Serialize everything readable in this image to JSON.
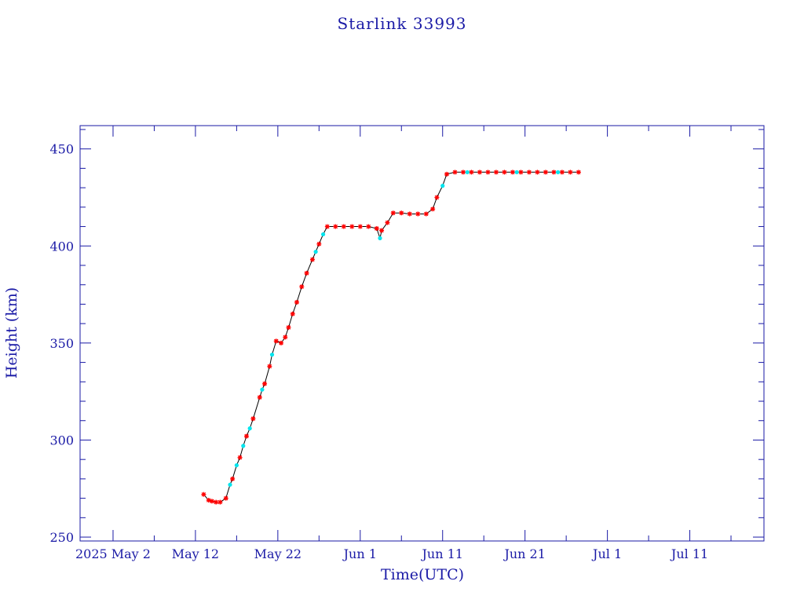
{
  "chart_data": {
    "type": "scatter",
    "title": "Starlink 33993",
    "xlabel": "Time(UTC)",
    "ylabel": "Height (km)",
    "x_range": [
      "2025-04-28",
      "2025-07-20"
    ],
    "ylim": [
      248,
      462
    ],
    "x_ticks": [
      {
        "label": "2025 May  2",
        "date": "2025-05-02"
      },
      {
        "label": "May 12",
        "date": "2025-05-12"
      },
      {
        "label": "May 22",
        "date": "2025-05-22"
      },
      {
        "label": "Jun  1",
        "date": "2025-06-01"
      },
      {
        "label": "Jun 11",
        "date": "2025-06-11"
      },
      {
        "label": "Jun 21",
        "date": "2025-06-21"
      },
      {
        "label": "Jul  1",
        "date": "2025-07-01"
      },
      {
        "label": "Jul 11",
        "date": "2025-07-11"
      }
    ],
    "y_ticks": [
      250,
      300,
      350,
      400,
      450
    ],
    "grid": false,
    "colors": {
      "axis": "#1a1aa6",
      "line": "#000000",
      "marker_primary": "#ff0000",
      "marker_secondary": "#00e5ee"
    },
    "series": [
      {
        "marker": "star",
        "color": "#ff0000",
        "points": [
          [
            "2025-05-13",
            272
          ],
          [
            "2025-05-13.6",
            269
          ],
          [
            "2025-05-14",
            268.5
          ],
          [
            "2025-05-14.5",
            268
          ],
          [
            "2025-05-15",
            268
          ],
          [
            "2025-05-15.7",
            270
          ],
          [
            "2025-05-16.5",
            280
          ],
          [
            "2025-05-17.4",
            291
          ],
          [
            "2025-05-18.2",
            302
          ],
          [
            "2025-05-19",
            311
          ],
          [
            "2025-05-19.8",
            322
          ],
          [
            "2025-05-20.4",
            329
          ],
          [
            "2025-05-21",
            338
          ],
          [
            "2025-05-21.8",
            351
          ],
          [
            "2025-05-22.4",
            350
          ],
          [
            "2025-05-22.9",
            353
          ],
          [
            "2025-05-23.3",
            358
          ],
          [
            "2025-05-23.8",
            365
          ],
          [
            "2025-05-24.3",
            371
          ],
          [
            "2025-05-24.9",
            379
          ],
          [
            "2025-05-25.5",
            386
          ],
          [
            "2025-05-26.2",
            393
          ],
          [
            "2025-05-27",
            401
          ],
          [
            "2025-05-28",
            410
          ],
          [
            "2025-05-29",
            410
          ],
          [
            "2025-05-30",
            410
          ],
          [
            "2025-05-31",
            410
          ],
          [
            "2025-06-01",
            410
          ],
          [
            "2025-06-02",
            410
          ],
          [
            "2025-06-03",
            409
          ],
          [
            "2025-06-03.6",
            408
          ],
          [
            "2025-06-04.3",
            412
          ],
          [
            "2025-06-05",
            417
          ],
          [
            "2025-06-06",
            417
          ],
          [
            "2025-06-07",
            416.5
          ],
          [
            "2025-06-08",
            416.5
          ],
          [
            "2025-06-09",
            416.5
          ],
          [
            "2025-06-09.8",
            419
          ],
          [
            "2025-06-10.3",
            425
          ],
          [
            "2025-06-11.5",
            437
          ],
          [
            "2025-06-12.5",
            438
          ],
          [
            "2025-06-13.5",
            438
          ],
          [
            "2025-06-14.5",
            438
          ],
          [
            "2025-06-15.5",
            438
          ],
          [
            "2025-06-16.5",
            438
          ],
          [
            "2025-06-17.5",
            438
          ],
          [
            "2025-06-18.5",
            438
          ],
          [
            "2025-06-19.5",
            438
          ],
          [
            "2025-06-20.5",
            438
          ],
          [
            "2025-06-21.5",
            438
          ],
          [
            "2025-06-22.5",
            438
          ],
          [
            "2025-06-23.5",
            438
          ],
          [
            "2025-06-24.5",
            438
          ],
          [
            "2025-06-25.5",
            438
          ],
          [
            "2025-06-26.5",
            438
          ],
          [
            "2025-06-27.5",
            438
          ]
        ]
      },
      {
        "marker": "dot",
        "color": "#00e5ee",
        "points": [
          [
            "2025-05-16.2",
            277
          ],
          [
            "2025-05-17",
            287
          ],
          [
            "2025-05-17.8",
            297
          ],
          [
            "2025-05-18.6",
            306
          ],
          [
            "2025-05-20.1",
            326
          ],
          [
            "2025-05-21.3",
            344
          ],
          [
            "2025-05-26.6",
            397
          ],
          [
            "2025-05-27.5",
            406
          ],
          [
            "2025-06-03.4",
            404
          ],
          [
            "2025-06-11",
            431
          ],
          [
            "2025-06-14",
            438
          ],
          [
            "2025-06-20",
            438
          ],
          [
            "2025-06-25",
            438
          ]
        ]
      }
    ]
  }
}
